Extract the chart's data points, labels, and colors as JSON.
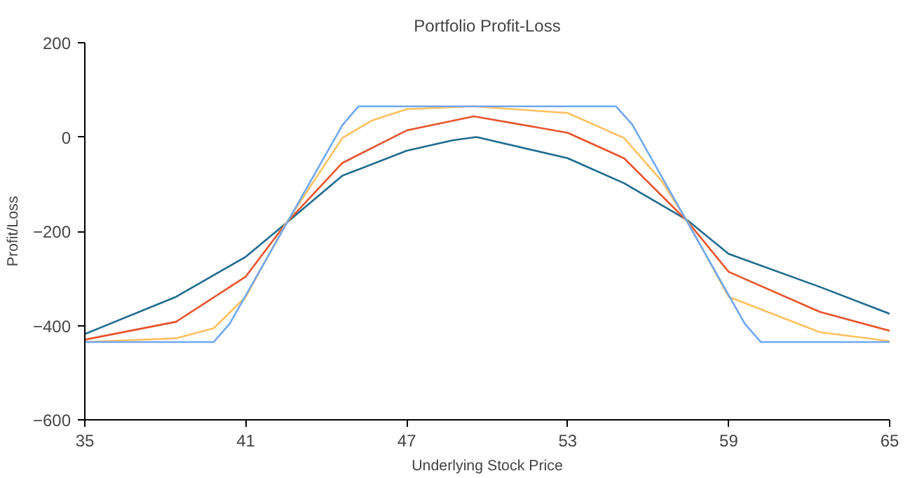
{
  "chart_data": {
    "type": "line",
    "title": "Portfolio Profit-Loss",
    "xlabel": "Underlying Stock Price",
    "ylabel": "Profit/Loss",
    "xlim": [
      35,
      65
    ],
    "xticks": [
      35,
      41,
      47,
      53,
      59,
      65
    ],
    "ylim": [
      -600,
      200
    ],
    "yticks": [
      -600,
      -400,
      -200,
      0,
      200
    ],
    "grid": false,
    "series": [
      {
        "color": "#1f6b8f",
        "x": [
          35,
          38.4,
          41,
          42.5,
          44.6,
          47,
          48.7,
          49.6,
          53,
          55.1,
          57.45,
          59,
          62.4,
          65
        ],
        "values": [
          -418,
          -339,
          -254,
          -183,
          -82,
          -29,
          -7,
          0,
          -45,
          -98,
          -176,
          -248,
          -318,
          -375
        ]
      },
      {
        "color": "#e8532b",
        "x": [
          35,
          38.4,
          41,
          42.5,
          44.6,
          47,
          49.5,
          53,
          55.1,
          57.45,
          59,
          62.4,
          65
        ],
        "values": [
          -430,
          -392,
          -296,
          -183,
          -55,
          14,
          44,
          9,
          -45,
          -178,
          -286,
          -371,
          -411
        ]
      },
      {
        "color": "#ffc061",
        "x": [
          35,
          38.4,
          39.8,
          41,
          42.5,
          44.6,
          45.7,
          47,
          49.5,
          53,
          55.1,
          56.5,
          57.45,
          59,
          62.4,
          65
        ],
        "values": [
          -435,
          -427,
          -406,
          -339,
          -183,
          -2,
          35,
          59,
          65,
          51,
          -2,
          -93,
          -178,
          -339,
          -414,
          -433
        ]
      },
      {
        "color": "#6fa8f0",
        "x": [
          35,
          39.8,
          40.4,
          44.6,
          45.2,
          54.8,
          55.4,
          59.6,
          60.2,
          65
        ],
        "values": [
          -435,
          -435,
          -396,
          25,
          65,
          65,
          27,
          -396,
          -435,
          -435
        ]
      }
    ]
  }
}
